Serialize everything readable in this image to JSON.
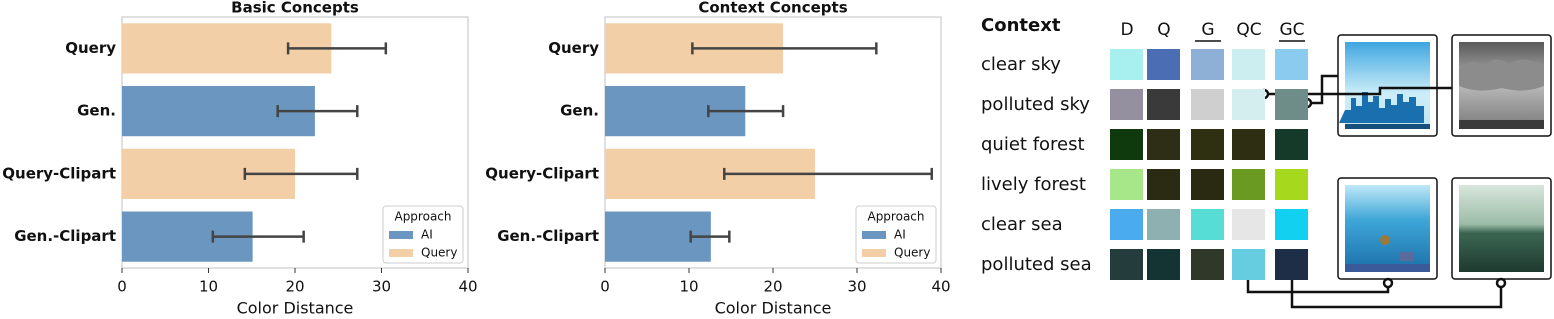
{
  "chart_data": [
    {
      "type": "bar",
      "orientation": "horizontal",
      "title": "Basic Concepts",
      "x_label": "Color Distance",
      "categories": [
        "Query",
        "Gen.",
        "Query-Clipart",
        "Gen.-Clipart"
      ],
      "legend_title": "Approach",
      "legend_loc": "lower right",
      "series": [
        {
          "name": "AI",
          "color": "#6a96c0",
          "values": [
            null,
            22.3,
            null,
            15.1
          ],
          "ci_low": [
            null,
            18.0,
            null,
            10.5
          ],
          "ci_high": [
            null,
            27.2,
            null,
            21.0
          ]
        },
        {
          "name": "Query",
          "color": "#f3cfa8",
          "values": [
            24.2,
            null,
            20.0,
            null
          ],
          "ci_low": [
            19.2,
            null,
            14.2,
            null
          ],
          "ci_high": [
            30.5,
            null,
            27.2,
            null
          ]
        }
      ],
      "xlim": [
        0,
        40
      ],
      "xticks": [
        0,
        10,
        20,
        30,
        40
      ]
    },
    {
      "type": "bar",
      "orientation": "horizontal",
      "title": "Context Concepts",
      "x_label": "Color Distance",
      "categories": [
        "Query",
        "Gen.",
        "Query-Clipart",
        "Gen.-Clipart"
      ],
      "legend_title": "Approach",
      "legend_loc": "lower right",
      "series": [
        {
          "name": "AI",
          "color": "#6a96c0",
          "values": [
            null,
            16.7,
            null,
            12.6
          ],
          "ci_low": [
            null,
            12.3,
            null,
            10.2
          ],
          "ci_high": [
            null,
            21.2,
            null,
            14.8
          ]
        },
        {
          "name": "Query",
          "color": "#f3cfa8",
          "values": [
            21.2,
            null,
            25.0,
            null
          ],
          "ci_low": [
            10.4,
            null,
            14.2,
            null
          ],
          "ci_high": [
            32.3,
            null,
            38.9,
            null
          ]
        }
      ],
      "xlim": [
        0,
        40
      ],
      "xticks": [
        0,
        10,
        20,
        30,
        40
      ]
    }
  ],
  "swatch_table": {
    "title": "Context",
    "columns": [
      "D",
      "Q",
      "G",
      "QC",
      "GC"
    ],
    "underlined": [
      false,
      false,
      true,
      false,
      true
    ],
    "rows": [
      {
        "label": "clear sky",
        "colors": [
          "#a8f0f0",
          "#4a6db3",
          "#8fb0d6",
          "#cdeef0",
          "#8ccbf0"
        ]
      },
      {
        "label": "polluted sky",
        "colors": [
          "#9490a0",
          "#3a3a3a",
          "#cfcfcf",
          "#d4eef0",
          "#6e8c88"
        ]
      },
      {
        "label": "quiet forest",
        "colors": [
          "#0e3a0e",
          "#2e2e16",
          "#2f2f12",
          "#2e2e12",
          "#153a2a"
        ]
      },
      {
        "label": "lively forest",
        "colors": [
          "#a8e68a",
          "#2b2b14",
          "#2a2a12",
          "#6a9a22",
          "#a6d81e"
        ]
      },
      {
        "label": "clear sea",
        "colors": [
          "#4aabee",
          "#8fb0b0",
          "#56ddd6",
          "#e6e6e6",
          "#12d0f0"
        ]
      },
      {
        "label": "polluted sea",
        "colors": [
          "#253c3c",
          "#143434",
          "#30382a",
          "#66cce0",
          "#1e2e46"
        ]
      }
    ]
  }
}
